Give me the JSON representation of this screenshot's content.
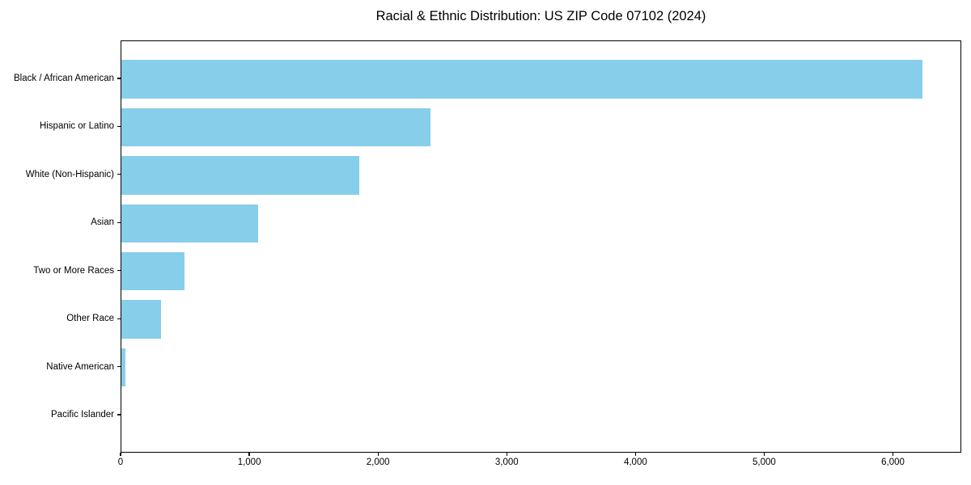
{
  "chart_data": {
    "type": "bar",
    "orientation": "horizontal",
    "title": "Racial & Ethnic Distribution: US ZIP Code 07102 (2024)",
    "categories": [
      "Black / African American",
      "Hispanic or Latino",
      "White (Non-Hispanic)",
      "Asian",
      "Two or More Races",
      "Other Race",
      "Native American",
      "Pacific Islander"
    ],
    "values": [
      6220,
      2400,
      1850,
      1060,
      490,
      310,
      30,
      0
    ],
    "xlabel": "",
    "ylabel": "",
    "xlim": [
      0,
      6531
    ],
    "x_ticks": [
      0,
      1000,
      2000,
      3000,
      4000,
      5000,
      6000
    ],
    "x_tick_labels": [
      "0",
      "1,000",
      "2,000",
      "3,000",
      "4,000",
      "5,000",
      "6,000"
    ],
    "grid": false,
    "legend": null,
    "bar_color": "#87CEEB",
    "axis_color": "#000000",
    "background_color": "#ffffff"
  }
}
